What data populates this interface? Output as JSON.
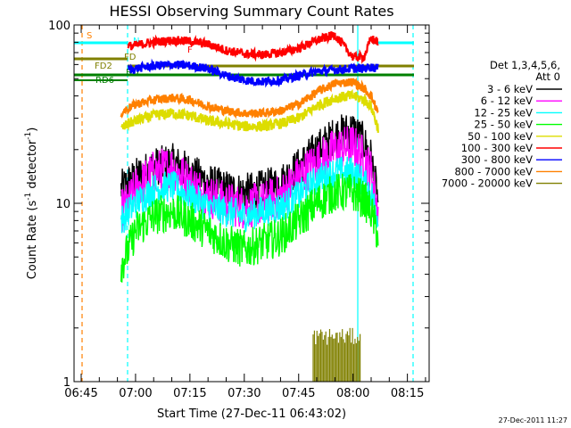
{
  "chart_data": {
    "type": "line",
    "title": "HESSI Observing Summary Count Rates",
    "xlabel": "Start Time (27-Dec-11 06:43:02)",
    "ylabel": "Count Rate (s⁻¹ detector⁻¹)",
    "ylabel_main": "Count Rate (s",
    "ylabel_exp1": "-1",
    "ylabel_mid": " detector",
    "ylabel_exp2": "-1",
    "ylabel_end": ")",
    "y_scale": "log",
    "ylim": [
      1,
      100
    ],
    "y_ticks": [
      "1",
      "10",
      "100"
    ],
    "xlim": [
      "06:43:02",
      "08:21:00"
    ],
    "x_ticks": [
      "06:45",
      "07:00",
      "07:15",
      "07:30",
      "07:45",
      "08:00",
      "08:15"
    ],
    "legend_title_1": "Det 1,3,4,5,6,",
    "legend_title_2": "Att 0",
    "legend_placement": "right",
    "series": [
      {
        "name": "3 - 6 keV",
        "color": "#000000",
        "x": [
          "06:56",
          "06:58",
          "07:00",
          "07:05",
          "07:10",
          "07:15",
          "07:20",
          "07:25",
          "07:30",
          "07:35",
          "07:40",
          "07:45",
          "07:50",
          "07:55",
          "08:00",
          "08:03",
          "08:05",
          "08:07"
        ],
        "values": [
          12,
          13,
          14,
          16,
          17,
          15,
          13,
          12,
          11.5,
          12,
          13,
          16,
          20,
          24,
          26,
          22,
          18,
          10
        ]
      },
      {
        "name": "6 - 12 keV",
        "color": "#ff00ff",
        "x": [
          "06:56",
          "06:58",
          "07:00",
          "07:05",
          "07:10",
          "07:15",
          "07:20",
          "07:25",
          "07:30",
          "07:35",
          "07:40",
          "07:45",
          "07:50",
          "07:55",
          "08:00",
          "08:03",
          "08:05",
          "08:07"
        ],
        "values": [
          9,
          10,
          12,
          15,
          16,
          13,
          11,
          10,
          9.5,
          10,
          11,
          14,
          17,
          20,
          21,
          18,
          15,
          9
        ]
      },
      {
        "name": "12 - 25 keV",
        "color": "#00ffff",
        "x": [
          "06:56",
          "06:58",
          "07:00",
          "07:05",
          "07:10",
          "07:15",
          "07:20",
          "07:25",
          "07:30",
          "07:35",
          "07:40",
          "07:45",
          "07:50",
          "07:55",
          "08:00",
          "08:03",
          "08:05",
          "08:07"
        ],
        "values": [
          8,
          9,
          10,
          12,
          12.5,
          11,
          9.5,
          9,
          8.5,
          9,
          9.5,
          11,
          13.5,
          15,
          15,
          13,
          11.5,
          8
        ]
      },
      {
        "name": "25 - 50 keV",
        "color": "#00ff00",
        "x": [
          "06:56",
          "06:58",
          "07:00",
          "07:05",
          "07:10",
          "07:15",
          "07:20",
          "07:25",
          "07:30",
          "07:35",
          "07:40",
          "07:45",
          "07:50",
          "07:55",
          "08:00",
          "08:03",
          "08:05",
          "08:07"
        ],
        "values": [
          4.5,
          5.5,
          7,
          8.5,
          9,
          8,
          7,
          6,
          5.5,
          6,
          6.5,
          8,
          10,
          11.5,
          11.5,
          10.5,
          9,
          6.5
        ]
      },
      {
        "name": "50 - 100 keV",
        "color": "#dddd00",
        "x": [
          "06:56",
          "06:58",
          "07:00",
          "07:05",
          "07:10",
          "07:15",
          "07:20",
          "07:25",
          "07:30",
          "07:35",
          "07:40",
          "07:45",
          "07:50",
          "07:55",
          "08:00",
          "08:03",
          "08:05",
          "08:07"
        ],
        "values": [
          26,
          28,
          29,
          31,
          32,
          31,
          29,
          28,
          27,
          27,
          28,
          30,
          35,
          39,
          40,
          38,
          35,
          26
        ]
      },
      {
        "name": "100 - 300 keV",
        "color": "#ff0000",
        "x": [
          "06:58",
          "07:00",
          "07:05",
          "07:10",
          "07:15",
          "07:20",
          "07:25",
          "07:30",
          "07:35",
          "07:40",
          "07:45",
          "07:50",
          "07:55",
          "08:00",
          "08:03",
          "08:05",
          "08:07"
        ],
        "values": [
          76,
          77,
          80,
          82,
          81,
          78,
          72,
          69,
          68,
          70,
          74,
          82,
          88,
          66,
          66,
          84,
          80
        ]
      },
      {
        "name": "300 - 800 keV",
        "color": "#0000ff",
        "x": [
          "06:58",
          "07:00",
          "07:05",
          "07:10",
          "07:15",
          "07:20",
          "07:25",
          "07:30",
          "07:35",
          "07:40",
          "07:45",
          "07:50",
          "07:55",
          "08:00",
          "08:03",
          "08:05",
          "08:07"
        ],
        "values": [
          56,
          57,
          59,
          60,
          59,
          57,
          52,
          49,
          48,
          49,
          52,
          55,
          56,
          57,
          57,
          58,
          57
        ]
      },
      {
        "name": "800 - 7000 keV",
        "color": "#ff8000",
        "x": [
          "06:56",
          "06:58",
          "07:00",
          "07:05",
          "07:10",
          "07:15",
          "07:20",
          "07:25",
          "07:30",
          "07:35",
          "07:40",
          "07:45",
          "07:50",
          "07:55",
          "08:00",
          "08:03",
          "08:05",
          "08:07"
        ],
        "values": [
          32,
          34,
          36,
          38,
          39,
          38,
          35,
          33,
          32,
          32,
          33,
          36,
          42,
          47,
          48,
          44,
          40,
          32
        ]
      },
      {
        "name": "7000 - 20000 keV",
        "color": "#808000",
        "x": [
          "07:49",
          "07:50",
          "07:51",
          "07:52",
          "07:53",
          "07:54",
          "07:55",
          "07:56",
          "07:57",
          "07:58",
          "07:59",
          "08:00",
          "08:01",
          "08:02"
        ],
        "values": [
          2,
          1.5,
          2,
          1.8,
          2,
          1.6,
          2,
          1.9,
          2,
          1.7,
          2,
          1.8,
          2,
          1.6
        ]
      }
    ],
    "flag_labels": [
      {
        "label": "S",
        "color": "#ff8000"
      },
      {
        "label": "N",
        "color": "#00ffff"
      },
      {
        "label": "FD",
        "color": "#808000"
      },
      {
        "label": "FD2",
        "color": "#808000"
      },
      {
        "label": "F",
        "color": "#ff0000"
      },
      {
        "label": "RD",
        "color": "#008000"
      },
      {
        "label": "RD6",
        "color": "#008000"
      }
    ]
  },
  "footer": {
    "timestamp": "27-Dec-2011 11:27"
  }
}
